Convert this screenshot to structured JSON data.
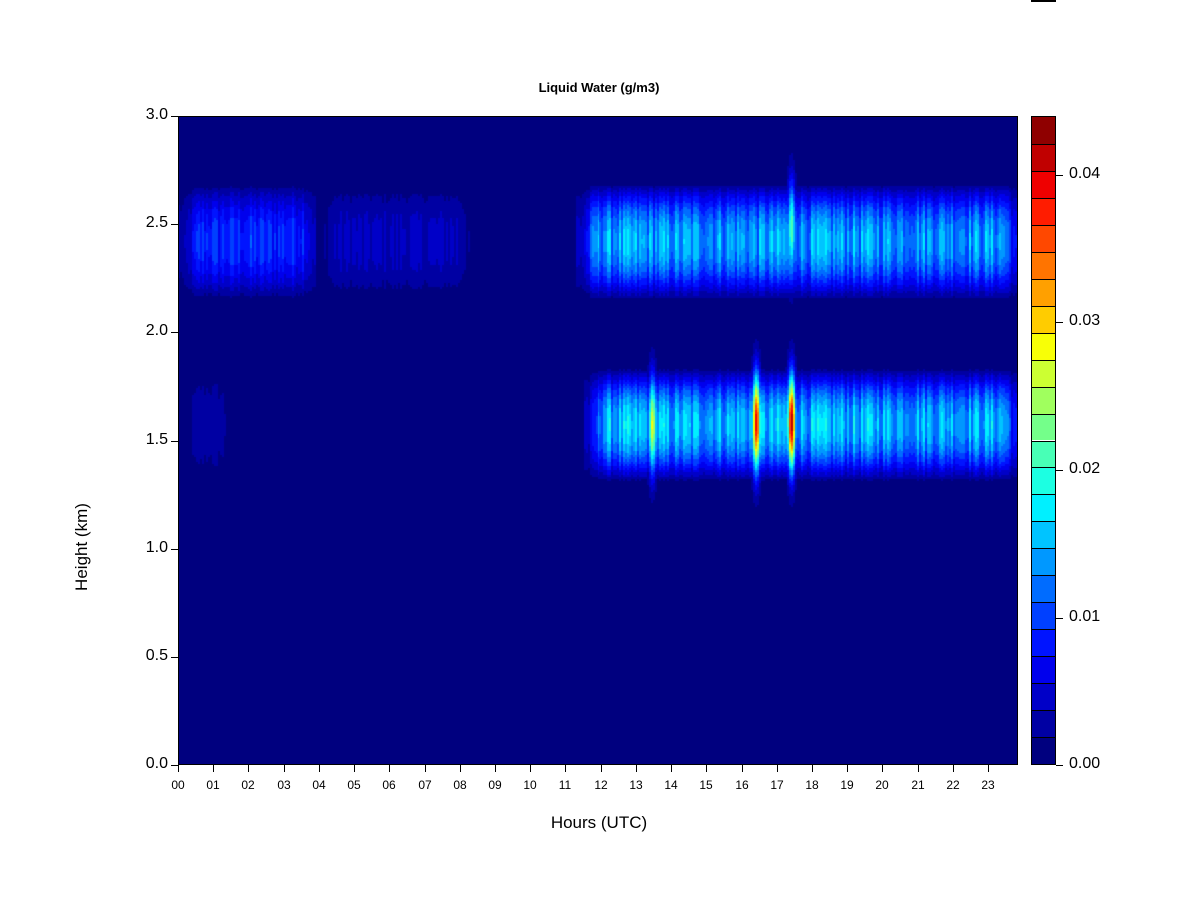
{
  "chart_data": {
    "type": "heatmap",
    "title": "Liquid Water (g/m3)",
    "xlabel": "Hours (UTC)",
    "ylabel": "Height (km)",
    "xlim": [
      0,
      23.85
    ],
    "ylim": [
      0,
      3.0
    ],
    "x_ticks": [
      0,
      1,
      2,
      3,
      4,
      5,
      6,
      7,
      8,
      9,
      10,
      11,
      12,
      13,
      14,
      15,
      16,
      17,
      18,
      19,
      20,
      21,
      22,
      23
    ],
    "x_tick_labels": [
      "00",
      "01",
      "02",
      "03",
      "04",
      "05",
      "06",
      "07",
      "08",
      "09",
      "10",
      "11",
      "12",
      "13",
      "14",
      "15",
      "16",
      "17",
      "18",
      "19",
      "20",
      "21",
      "22",
      "23"
    ],
    "y_ticks": [
      0.0,
      0.5,
      1.0,
      1.5,
      2.0,
      2.5,
      3.0
    ],
    "y_tick_labels": [
      "0.0",
      "0.5",
      "1.0",
      "1.5",
      "2.0",
      "2.5",
      "3.0"
    ],
    "colorbar": {
      "min": 0.0,
      "max": 0.044,
      "ticks": [
        0.0,
        0.01,
        0.02,
        0.03,
        0.04
      ],
      "tick_labels": [
        "0.00",
        "0.01",
        "0.02",
        "0.03",
        "0.04"
      ],
      "colors": [
        "#00007f",
        "#0000a3",
        "#0000c8",
        "#0000ed",
        "#0014ff",
        "#0040ff",
        "#006cff",
        "#0098ff",
        "#00c4ff",
        "#00f0ff",
        "#1cffe2",
        "#48ffb6",
        "#74ff8a",
        "#a0ff5e",
        "#ccff32",
        "#f8ff06",
        "#ffcc00",
        "#ffa000",
        "#ff7400",
        "#ff4800",
        "#ff1c00",
        "#ef0000",
        "#c00000",
        "#8f0000"
      ]
    },
    "layers": [
      {
        "name_hint": "upper",
        "height_center": 2.42,
        "height_halfwidth": 0.28,
        "segments": [
          {
            "x_start": 0.0,
            "x_end": 3.9,
            "value": 0.009
          },
          {
            "x_start": 3.9,
            "x_end": 8.3,
            "value": 0.004
          },
          {
            "x_start": 11.3,
            "x_end": 23.85,
            "value": 0.014
          }
        ]
      },
      {
        "name_hint": "lower",
        "height_center": 1.57,
        "height_halfwidth": 0.27,
        "segments": [
          {
            "x_start": 0.0,
            "x_end": 1.5,
            "value": 0.003
          },
          {
            "x_start": 11.5,
            "x_end": 23.85,
            "value": 0.015
          }
        ]
      }
    ],
    "peaks": [
      {
        "x": 13.5,
        "y": 1.57,
        "value": 0.028
      },
      {
        "x": 16.45,
        "y": 1.58,
        "value": 0.04
      },
      {
        "x": 17.45,
        "y": 1.58,
        "value": 0.042
      },
      {
        "x": 17.45,
        "y": 2.48,
        "value": 0.022
      }
    ]
  }
}
